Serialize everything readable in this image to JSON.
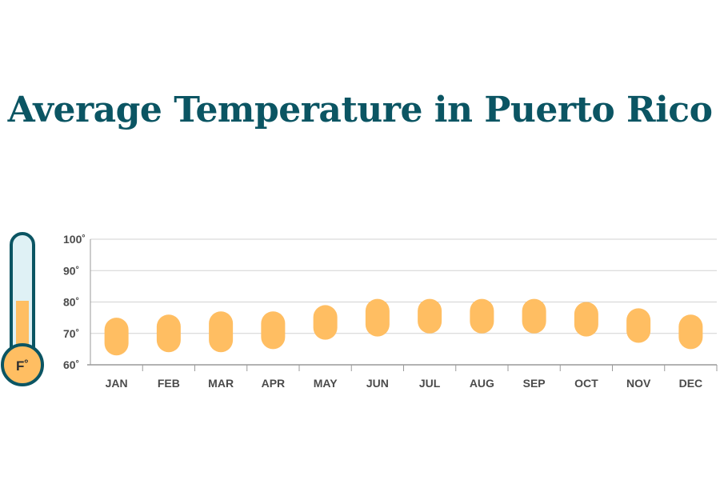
{
  "title": "Average Temperature in Puerto Rico",
  "thermometer": {
    "label": "F˚",
    "icon": "thermometer-icon"
  },
  "colors": {
    "title": "#0b5563",
    "range_bar": "#ffbe62",
    "grid": "#d2d2d2",
    "axis": "#9a9a9a",
    "tick_text": "#4b4b4b",
    "thermo_outline": "#0b5563",
    "thermo_tube": "#dff1f5",
    "thermo_fill": "#ffbe62"
  },
  "chart_data": {
    "type": "bar",
    "subtype": "range",
    "categories": [
      "JAN",
      "FEB",
      "MAR",
      "APR",
      "MAY",
      "JUN",
      "JUL",
      "AUG",
      "SEP",
      "OCT",
      "NOV",
      "DEC"
    ],
    "series": [
      {
        "low": [
          63,
          64,
          64,
          65,
          68,
          69,
          70,
          70,
          70,
          69,
          67,
          65
        ],
        "high": [
          75,
          76,
          77,
          77,
          79,
          81,
          81,
          81,
          81,
          80,
          78,
          76
        ]
      }
    ],
    "yticks": [
      "60˚",
      "70˚",
      "80˚",
      "90˚",
      "100˚"
    ],
    "ylim": [
      60,
      100
    ],
    "grid": true
  }
}
